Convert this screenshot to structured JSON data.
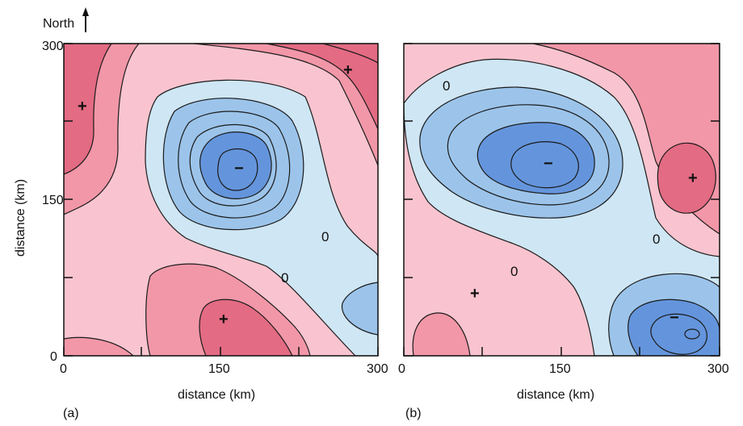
{
  "north_label": "North",
  "colors": {
    "pos_light": "#f9c4cf",
    "pos_mid": "#f297a8",
    "pos_dark": "#e36b83",
    "neg_light": "#cfe6f4",
    "neg_mid": "#9cc4ea",
    "neg_dark": "#6495dc",
    "contour": "#1a1a1a"
  },
  "panels": [
    {
      "label": "(a)",
      "x_axis": {
        "label": "distance (km)",
        "ticks": [
          "0",
          "150",
          "300"
        ]
      },
      "y_axis": {
        "label": "distance (km)",
        "ticks": [
          "0",
          "150",
          "300"
        ]
      },
      "plus_sign": "+",
      "minus_sign": "−",
      "zero_label": "0"
    },
    {
      "label": "(b)",
      "x_axis": {
        "label": "distance (km)",
        "ticks": [
          "0",
          "150",
          "300"
        ]
      },
      "plus_sign": "+",
      "minus_sign": "−",
      "zero_label": "0"
    }
  ]
}
